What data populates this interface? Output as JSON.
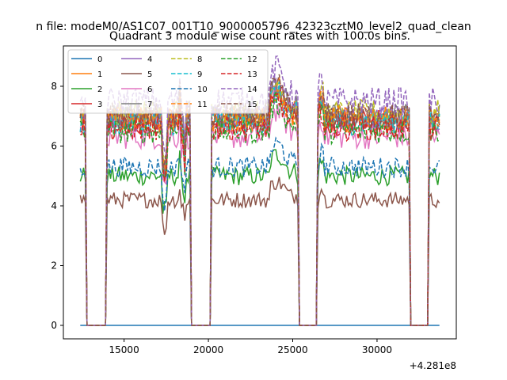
{
  "chart_data": {
    "type": "line",
    "suptitle": "n file: modeM0/AS1C07_001T10_9000005796_42323cztM0_level2_quad_clean",
    "title": "Quadrant 3 module wise count rates with 100.0s bins.",
    "xlabel": "",
    "ylabel": "",
    "x_offset_label": "+4.281e8",
    "xlim": [
      11400,
      34700
    ],
    "ylim": [
      -0.45,
      9.35
    ],
    "x_ticks": [
      15000,
      20000,
      25000,
      30000
    ],
    "x_tick_labels": [
      "15000",
      "20000",
      "25000",
      "30000"
    ],
    "y_ticks": [
      0,
      2,
      4,
      6,
      8
    ],
    "y_tick_labels": [
      "0",
      "2",
      "4",
      "6",
      "8"
    ],
    "grid": false,
    "legend_position": "top-left",
    "x_range": [
      12400,
      33700
    ],
    "gaps": [
      [
        12700,
        13950
      ],
      [
        18950,
        20150
      ],
      [
        25350,
        26450
      ],
      [
        31950,
        33100
      ]
    ],
    "series": [
      {
        "name": "0",
        "color": "#1f77b4",
        "dash": "solid",
        "level": 0.0
      },
      {
        "name": "1",
        "color": "#ff7f0e",
        "dash": "solid",
        "level": 6.9
      },
      {
        "name": "2",
        "color": "#2ca02c",
        "dash": "solid",
        "level": 5.0
      },
      {
        "name": "3",
        "color": "#d62728",
        "dash": "solid",
        "level": 6.8
      },
      {
        "name": "4",
        "color": "#9467bd",
        "dash": "solid",
        "level": 6.9
      },
      {
        "name": "5",
        "color": "#8c564b",
        "dash": "solid",
        "level": 4.2
      },
      {
        "name": "6",
        "color": "#e377c2",
        "dash": "solid",
        "level": 6.3
      },
      {
        "name": "7",
        "color": "#7f7f7f",
        "dash": "solid",
        "level": 7.0
      },
      {
        "name": "8",
        "color": "#bcbd22",
        "dash": "dashed",
        "level": 7.1
      },
      {
        "name": "9",
        "color": "#17becf",
        "dash": "dashed",
        "level": 6.8
      },
      {
        "name": "10",
        "color": "#1f77b4",
        "dash": "dashed",
        "level": 5.3
      },
      {
        "name": "11",
        "color": "#ff7f0e",
        "dash": "dashed",
        "level": 6.9
      },
      {
        "name": "12",
        "color": "#2ca02c",
        "dash": "dashed",
        "level": 6.5
      },
      {
        "name": "13",
        "color": "#d62728",
        "dash": "dashed",
        "level": 6.6
      },
      {
        "name": "14",
        "color": "#9467bd",
        "dash": "dashed",
        "level": 7.5
      },
      {
        "name": "15",
        "color": "#8c564b",
        "dash": "dashed",
        "level": 7.0
      }
    ]
  }
}
